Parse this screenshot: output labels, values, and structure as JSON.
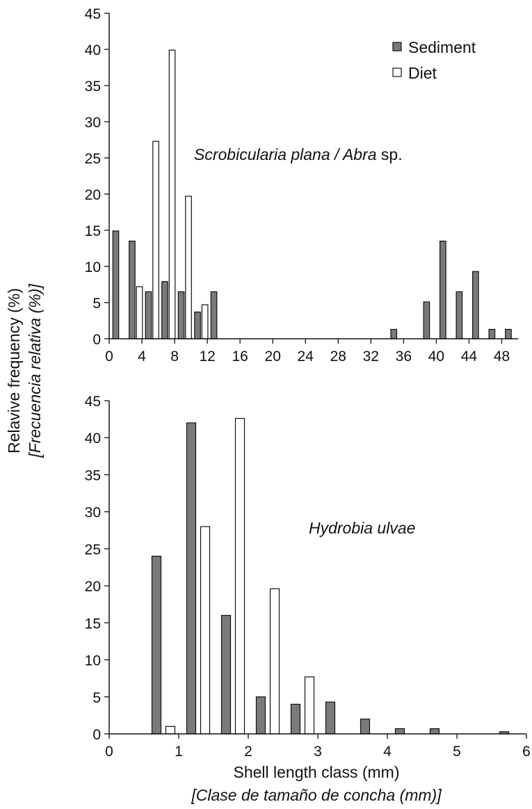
{
  "figure": {
    "ylabel_line1": "Relavive frequency (%)",
    "ylabel_line2": "[Frecuencia relativa (%)]",
    "xlabel_line1": "Shell length class (mm)",
    "xlabel_line2": "[Clase de tamaño de concha (mm)]"
  },
  "legend": {
    "sediment": "Sediment",
    "diet": "Diet"
  },
  "colors": {
    "sediment": "#7a7a7a",
    "diet": "#ffffff",
    "stroke": "#111111"
  },
  "chart_data": [
    {
      "type": "bar",
      "title_parts": [
        "Scrobicularia plana",
        " / ",
        "Abra",
        " sp."
      ],
      "legend_position": "top-right",
      "grid": false,
      "xlim": [
        0,
        50
      ],
      "ylim": [
        0,
        45
      ],
      "xticks": [
        0,
        4,
        8,
        12,
        16,
        20,
        24,
        28,
        32,
        36,
        40,
        44,
        48
      ],
      "yticks": [
        0,
        5,
        10,
        15,
        20,
        25,
        30,
        35,
        40,
        45
      ],
      "bar_width": 0.72,
      "series": [
        {
          "name": "Sediment",
          "x": [
            0.8,
            2.8,
            4.8,
            6.8,
            8.8,
            10.8,
            12.8,
            34.8,
            38.8,
            40.8,
            42.8,
            44.8,
            46.8,
            48.8
          ],
          "values": [
            14.9,
            13.5,
            6.5,
            7.9,
            6.5,
            3.7,
            6.5,
            1.3,
            5.1,
            13.5,
            6.5,
            9.3,
            1.3,
            1.3
          ]
        },
        {
          "name": "Diet",
          "x": [
            3.7,
            5.7,
            7.7,
            9.7,
            11.7
          ],
          "values": [
            7.2,
            27.3,
            39.9,
            19.7,
            4.7
          ]
        }
      ]
    },
    {
      "type": "bar",
      "title_parts": [
        "Hydrobia ulvae"
      ],
      "grid": false,
      "xlim": [
        0,
        6
      ],
      "ylim": [
        0,
        45
      ],
      "xticks": [
        0,
        1,
        2,
        3,
        4,
        5,
        6
      ],
      "yticks": [
        0,
        5,
        10,
        15,
        20,
        25,
        30,
        35,
        40,
        45
      ],
      "bar_width": 0.13,
      "series": [
        {
          "name": "Sediment",
          "x": [
            0.68,
            1.18,
            1.68,
            2.18,
            2.68,
            3.18,
            3.68,
            4.18,
            4.68,
            5.68
          ],
          "values": [
            24,
            42,
            16,
            5,
            4,
            4.3,
            2,
            0.7,
            0.7,
            0.3
          ]
        },
        {
          "name": "Diet",
          "x": [
            0.88,
            1.38,
            1.88,
            2.38,
            2.88
          ],
          "values": [
            1,
            28,
            42.6,
            19.6,
            7.7
          ]
        }
      ]
    }
  ]
}
